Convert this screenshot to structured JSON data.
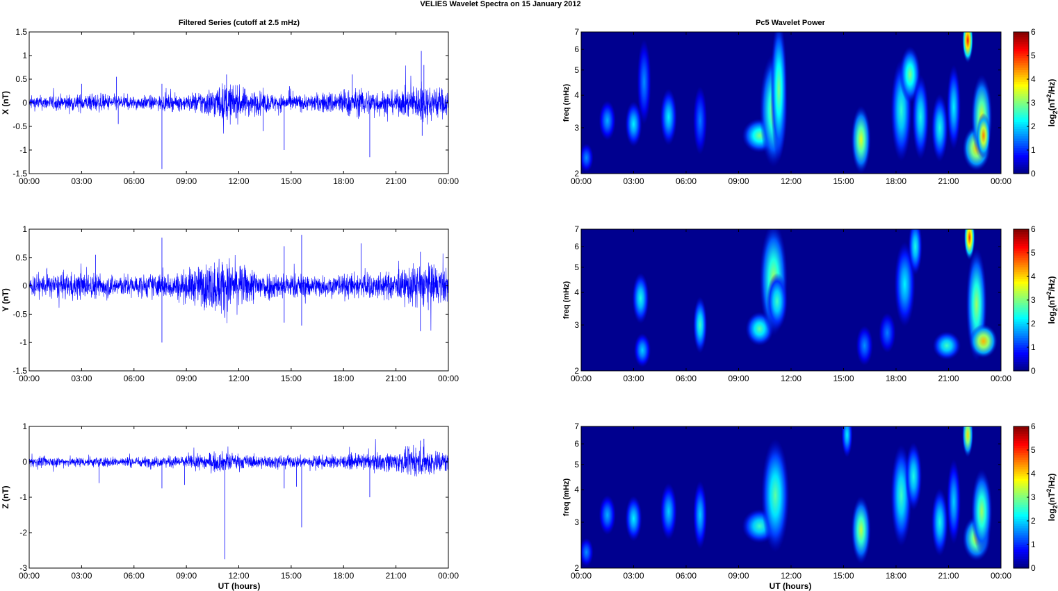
{
  "figure": {
    "title": "VELIES Wavelet Spectra on 15 January   2012",
    "left_column_title": "Filtered Series (cutoff at 2.5 mHz)",
    "right_column_title": "Pc5 Wavelet Power",
    "xlabel": "UT (hours)"
  },
  "chart_data": [
    {
      "type": "line",
      "component": "X",
      "ylabel": "X (nT)",
      "xlim": [
        "00:00",
        "24:00"
      ],
      "ylim": [
        -1.5,
        1.5
      ],
      "yticks": [
        "-1.5",
        "-1",
        "-0.5",
        "0",
        "0.5",
        "1",
        "1.5"
      ],
      "xticks": [
        "00:00",
        "03:00",
        "06:00",
        "09:00",
        "12:00",
        "15:00",
        "18:00",
        "21:00",
        "00:00"
      ],
      "series_color": "#0000ff",
      "envelope": [
        [
          0,
          0.15
        ],
        [
          2,
          0.18
        ],
        [
          4,
          0.2
        ],
        [
          6,
          0.15
        ],
        [
          9,
          0.18
        ],
        [
          10.5,
          0.35
        ],
        [
          11.3,
          0.45
        ],
        [
          12.5,
          0.3
        ],
        [
          14,
          0.2
        ],
        [
          16,
          0.18
        ],
        [
          18,
          0.3
        ],
        [
          19.5,
          0.3
        ],
        [
          21,
          0.25
        ],
        [
          22.5,
          0.45
        ],
        [
          24,
          0.3
        ]
      ],
      "spikes": [
        [
          7.6,
          -1.4
        ],
        [
          7.6,
          0.4
        ],
        [
          11.3,
          0.6
        ],
        [
          14.6,
          -1.0
        ],
        [
          14.9,
          0.35
        ],
        [
          19.5,
          -1.15
        ],
        [
          22.45,
          1.1
        ],
        [
          22.5,
          -0.7
        ],
        [
          22.6,
          0.8
        ],
        [
          3.0,
          0.4
        ],
        [
          5.0,
          0.55
        ],
        [
          5.1,
          -0.45
        ],
        [
          13.4,
          -0.6
        ],
        [
          18.5,
          0.6
        ]
      ]
    },
    {
      "type": "line",
      "component": "Y",
      "ylabel": "Y (nT)",
      "xlim": [
        "00:00",
        "24:00"
      ],
      "ylim": [
        -1.5,
        1
      ],
      "yticks": [
        "-1.5",
        "-1",
        "-0.5",
        "0",
        "0.5",
        "1"
      ],
      "xticks": [
        "00:00",
        "03:00",
        "06:00",
        "09:00",
        "12:00",
        "15:00",
        "18:00",
        "21:00",
        "00:00"
      ],
      "series_color": "#0000ff",
      "envelope": [
        [
          0,
          0.2
        ],
        [
          3,
          0.25
        ],
        [
          6,
          0.2
        ],
        [
          8.5,
          0.25
        ],
        [
          10,
          0.4
        ],
        [
          11,
          0.55
        ],
        [
          12.5,
          0.35
        ],
        [
          14,
          0.25
        ],
        [
          17,
          0.2
        ],
        [
          19,
          0.25
        ],
        [
          21,
          0.25
        ],
        [
          22.5,
          0.45
        ],
        [
          24,
          0.3
        ]
      ],
      "spikes": [
        [
          7.6,
          0.85
        ],
        [
          7.6,
          -1.0
        ],
        [
          14.6,
          0.7
        ],
        [
          14.6,
          -0.65
        ],
        [
          15.6,
          0.9
        ],
        [
          15.6,
          -0.7
        ],
        [
          19.0,
          0.75
        ],
        [
          22.4,
          0.6
        ],
        [
          22.4,
          -0.8
        ],
        [
          3.8,
          0.55
        ],
        [
          1.0,
          0.3
        ]
      ]
    },
    {
      "type": "line",
      "component": "Z",
      "ylabel": "Z (nT)",
      "xlim": [
        "00:00",
        "24:00"
      ],
      "ylim": [
        -3,
        1
      ],
      "yticks": [
        "-3",
        "-2",
        "-1",
        "0",
        "1"
      ],
      "xticks": [
        "00:00",
        "03:00",
        "06:00",
        "09:00",
        "12:00",
        "15:00",
        "18:00",
        "21:00",
        "00:00"
      ],
      "series_color": "#0000ff",
      "envelope": [
        [
          0,
          0.15
        ],
        [
          3,
          0.15
        ],
        [
          6,
          0.15
        ],
        [
          9,
          0.18
        ],
        [
          11,
          0.3
        ],
        [
          12.5,
          0.2
        ],
        [
          15,
          0.18
        ],
        [
          18,
          0.2
        ],
        [
          21,
          0.3
        ],
        [
          22.5,
          0.45
        ],
        [
          24,
          0.3
        ]
      ],
      "spikes": [
        [
          11.2,
          -2.75
        ],
        [
          15.6,
          -1.85
        ],
        [
          7.6,
          -0.75
        ],
        [
          14.6,
          -0.75
        ],
        [
          8.9,
          -0.65
        ],
        [
          15.3,
          -0.7
        ],
        [
          4.0,
          -0.6
        ],
        [
          19.5,
          -1.0
        ],
        [
          22.6,
          0.65
        ],
        [
          22.4,
          0.6
        ]
      ]
    },
    {
      "type": "heatmap",
      "component": "X",
      "ylabel": "freq (mHz)",
      "xlim": [
        "00:00",
        "24:00"
      ],
      "ylim": [
        2,
        7
      ],
      "yscale": "log",
      "yticks": [
        "2",
        "3",
        "4",
        "5",
        "6",
        "7"
      ],
      "xticks": [
        "00:00",
        "03:00",
        "06:00",
        "09:00",
        "12:00",
        "15:00",
        "18:00",
        "21:00",
        "00:00"
      ],
      "colorbar_label": "log2(nT2/Hz)",
      "colorbar_ticks": [
        "0",
        "1",
        "2",
        "3",
        "4",
        "5",
        "6"
      ],
      "clim": [
        0,
        6
      ],
      "colormap": "jet",
      "background_color": "#00008f",
      "blobs": [
        {
          "t": 0.3,
          "f": 2.3,
          "v": 1.6,
          "w": 0.1,
          "h": 0.5
        },
        {
          "t": 1.5,
          "f": 3.2,
          "v": 1.8,
          "w": 0.12,
          "h": 0.7
        },
        {
          "t": 3.0,
          "f": 3.1,
          "v": 2.2,
          "w": 0.12,
          "h": 0.8
        },
        {
          "t": 3.6,
          "f": 4.5,
          "v": 1.6,
          "w": 0.1,
          "h": 1.5
        },
        {
          "t": 5.0,
          "f": 3.3,
          "v": 2.2,
          "w": 0.12,
          "h": 1.0
        },
        {
          "t": 6.8,
          "f": 3.2,
          "v": 1.5,
          "w": 0.1,
          "h": 1.2
        },
        {
          "t": 10.2,
          "f": 2.8,
          "v": 3.0,
          "w": 0.25,
          "h": 0.6
        },
        {
          "t": 11.0,
          "f": 3.5,
          "v": 3.2,
          "w": 0.2,
          "h": 2.0
        },
        {
          "t": 11.3,
          "f": 4.2,
          "v": 3.0,
          "w": 0.12,
          "h": 2.5
        },
        {
          "t": 16.0,
          "f": 2.7,
          "v": 3.6,
          "w": 0.14,
          "h": 1.2
        },
        {
          "t": 18.3,
          "f": 3.5,
          "v": 2.5,
          "w": 0.15,
          "h": 1.8
        },
        {
          "t": 18.8,
          "f": 4.8,
          "v": 3.0,
          "w": 0.15,
          "h": 1.0
        },
        {
          "t": 19.4,
          "f": 3.3,
          "v": 2.4,
          "w": 0.12,
          "h": 1.5
        },
        {
          "t": 20.5,
          "f": 3.0,
          "v": 2.4,
          "w": 0.12,
          "h": 1.2
        },
        {
          "t": 21.3,
          "f": 3.6,
          "v": 2.2,
          "w": 0.1,
          "h": 1.5
        },
        {
          "t": 22.1,
          "f": 6.5,
          "v": 5.2,
          "w": 0.08,
          "h": 0.8
        },
        {
          "t": 22.6,
          "f": 2.5,
          "v": 4.0,
          "w": 0.2,
          "h": 0.8
        },
        {
          "t": 22.9,
          "f": 3.3,
          "v": 3.6,
          "w": 0.15,
          "h": 1.5
        },
        {
          "t": 23.0,
          "f": 2.8,
          "v": 4.5,
          "w": 0.1,
          "h": 0.8
        }
      ]
    },
    {
      "type": "heatmap",
      "component": "Y",
      "ylabel": "freq (mHz)",
      "xlim": [
        "00:00",
        "24:00"
      ],
      "ylim": [
        2,
        7
      ],
      "yscale": "log",
      "yticks": [
        "2",
        "3",
        "4",
        "5",
        "6",
        "7"
      ],
      "xticks": [
        "00:00",
        "03:00",
        "06:00",
        "09:00",
        "12:00",
        "15:00",
        "18:00",
        "21:00",
        "00:00"
      ],
      "colorbar_label": "log2(nT2/Hz)",
      "colorbar_ticks": [
        "0",
        "1",
        "2",
        "3",
        "4",
        "5",
        "6"
      ],
      "clim": [
        0,
        6
      ],
      "colormap": "jet",
      "background_color": "#00008f",
      "blobs": [
        {
          "t": 3.4,
          "f": 3.8,
          "v": 2.4,
          "w": 0.12,
          "h": 0.9
        },
        {
          "t": 3.5,
          "f": 2.4,
          "v": 2.0,
          "w": 0.12,
          "h": 0.6
        },
        {
          "t": 6.8,
          "f": 3.0,
          "v": 2.6,
          "w": 0.1,
          "h": 1.0
        },
        {
          "t": 10.2,
          "f": 2.9,
          "v": 2.8,
          "w": 0.2,
          "h": 0.6
        },
        {
          "t": 11.0,
          "f": 4.5,
          "v": 3.2,
          "w": 0.2,
          "h": 2.0
        },
        {
          "t": 11.2,
          "f": 3.7,
          "v": 2.6,
          "w": 0.15,
          "h": 1.0
        },
        {
          "t": 16.2,
          "f": 2.5,
          "v": 1.6,
          "w": 0.12,
          "h": 0.7
        },
        {
          "t": 17.5,
          "f": 2.8,
          "v": 1.5,
          "w": 0.12,
          "h": 0.7
        },
        {
          "t": 18.5,
          "f": 4.3,
          "v": 2.2,
          "w": 0.15,
          "h": 1.5
        },
        {
          "t": 19.1,
          "f": 6.0,
          "v": 2.4,
          "w": 0.1,
          "h": 1.0
        },
        {
          "t": 20.9,
          "f": 2.5,
          "v": 2.6,
          "w": 0.2,
          "h": 0.5
        },
        {
          "t": 22.2,
          "f": 6.5,
          "v": 5.0,
          "w": 0.08,
          "h": 0.8
        },
        {
          "t": 22.6,
          "f": 3.6,
          "v": 3.2,
          "w": 0.15,
          "h": 2.0
        },
        {
          "t": 23.0,
          "f": 2.6,
          "v": 4.2,
          "w": 0.2,
          "h": 0.6
        }
      ]
    },
    {
      "type": "heatmap",
      "component": "Z",
      "ylabel": "freq (mHz)",
      "xlim": [
        "00:00",
        "24:00"
      ],
      "ylim": [
        2,
        7
      ],
      "yscale": "log",
      "yticks": [
        "2",
        "3",
        "4",
        "5",
        "6",
        "7"
      ],
      "xticks": [
        "00:00",
        "03:00",
        "06:00",
        "09:00",
        "12:00",
        "15:00",
        "18:00",
        "21:00",
        "00:00"
      ],
      "colorbar_label": "log2(nT2/Hz)",
      "colorbar_ticks": [
        "0",
        "1",
        "2",
        "3",
        "4",
        "5",
        "6"
      ],
      "clim": [
        0,
        6
      ],
      "colormap": "jet",
      "background_color": "#00008f",
      "blobs": [
        {
          "t": 0.3,
          "f": 2.3,
          "v": 1.6,
          "w": 0.1,
          "h": 0.5
        },
        {
          "t": 1.5,
          "f": 3.2,
          "v": 1.8,
          "w": 0.12,
          "h": 0.7
        },
        {
          "t": 3.0,
          "f": 3.1,
          "v": 2.2,
          "w": 0.12,
          "h": 0.8
        },
        {
          "t": 5.0,
          "f": 3.3,
          "v": 2.0,
          "w": 0.12,
          "h": 1.0
        },
        {
          "t": 6.8,
          "f": 3.2,
          "v": 2.0,
          "w": 0.1,
          "h": 1.2
        },
        {
          "t": 10.2,
          "f": 2.9,
          "v": 2.6,
          "w": 0.25,
          "h": 0.6
        },
        {
          "t": 11.1,
          "f": 3.8,
          "v": 2.8,
          "w": 0.2,
          "h": 2.0
        },
        {
          "t": 15.2,
          "f": 6.5,
          "v": 2.2,
          "w": 0.08,
          "h": 0.8
        },
        {
          "t": 16.0,
          "f": 2.8,
          "v": 3.4,
          "w": 0.14,
          "h": 1.2
        },
        {
          "t": 18.3,
          "f": 3.8,
          "v": 2.6,
          "w": 0.15,
          "h": 1.8
        },
        {
          "t": 19.0,
          "f": 4.5,
          "v": 2.4,
          "w": 0.12,
          "h": 1.2
        },
        {
          "t": 20.5,
          "f": 3.0,
          "v": 2.4,
          "w": 0.12,
          "h": 1.2
        },
        {
          "t": 21.3,
          "f": 3.6,
          "v": 2.0,
          "w": 0.1,
          "h": 1.5
        },
        {
          "t": 22.1,
          "f": 6.5,
          "v": 4.0,
          "w": 0.08,
          "h": 0.8
        },
        {
          "t": 22.6,
          "f": 2.6,
          "v": 3.6,
          "w": 0.2,
          "h": 0.8
        },
        {
          "t": 22.9,
          "f": 3.3,
          "v": 3.2,
          "w": 0.15,
          "h": 1.5
        }
      ]
    }
  ]
}
